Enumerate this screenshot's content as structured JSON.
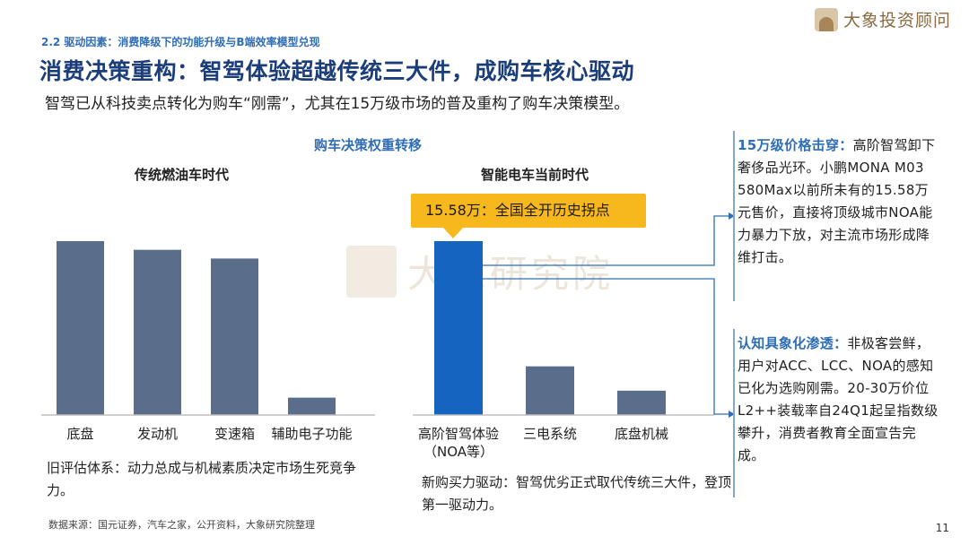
{
  "logo": {
    "text": "大象投资顾问"
  },
  "header": {
    "section": "2.2 驱动因素：消费降级下的功能升级与B端效率模型兑现",
    "title": "消费决策重构：智驾体验超越传统三大件，成购车核心驱动",
    "subtitle": "智驾已从科技卖点转化为购车“刚需”，尤其在15万级市场的普及重构了购车决策模型。"
  },
  "chart_data": [
    {
      "type": "bar",
      "title": "购车决策权重转移",
      "subtitle": "传统燃油车时代",
      "categories": [
        "底盘",
        "发动机",
        "变速箱",
        "辅助电子功能"
      ],
      "values": [
        100,
        95,
        90,
        10
      ],
      "colors": [
        "#5a6e8c",
        "#5a6e8c",
        "#5a6e8c",
        "#5a6e8c"
      ],
      "ylim": [
        0,
        100
      ],
      "grid": false
    },
    {
      "type": "bar",
      "title": "购车决策权重转移",
      "subtitle": "智能电车当前时代",
      "categories": [
        "高阶智驾体验\n（NOA等）",
        "三电系统",
        "底盘机械"
      ],
      "values": [
        100,
        28,
        14
      ],
      "colors": [
        "#1565c0",
        "#5a6e8c",
        "#5a6e8c"
      ],
      "ylim": [
        0,
        100
      ],
      "grid": false,
      "annotation": "15.58万：全国全开历史拐点"
    }
  ],
  "notes": {
    "left": "旧评估体系：动力总成与机械素质决定市场生死竞争力。",
    "right": "新购买力驱动：智驾优劣正式取代传统三大件，登顶第一驱动力。"
  },
  "panels": [
    {
      "heading": "15万级价格击穿：",
      "body": "高阶智驾卸下奢侈品光环。小鹏MONA M03 580Max以前所未有的15.58万元售价，直接将顶级城市NOA能力暴力下放，对主流市场形成降维打击。"
    },
    {
      "heading": "认知具象化渗透：",
      "body": "非极客尝鲜，用户对ACC、LCC、NOA的感知已化为选购刚需。20-30万价位L2++装载率自24Q1起呈指数级攀升，消费者教育全面宣告完成。"
    }
  ],
  "watermark": "大象研究院",
  "source": "数据来源：国元证券，汽车之家，公开资料，大象研究院整理",
  "page_number": "11",
  "colors": {
    "accent_blue": "#2f6db5",
    "title_navy": "#1b3e7b",
    "highlight_bar": "#1565c0",
    "neutral_bar": "#5a6e8c",
    "callout_yellow": "#f6b81c",
    "brand_gold": "#8a6a43"
  }
}
